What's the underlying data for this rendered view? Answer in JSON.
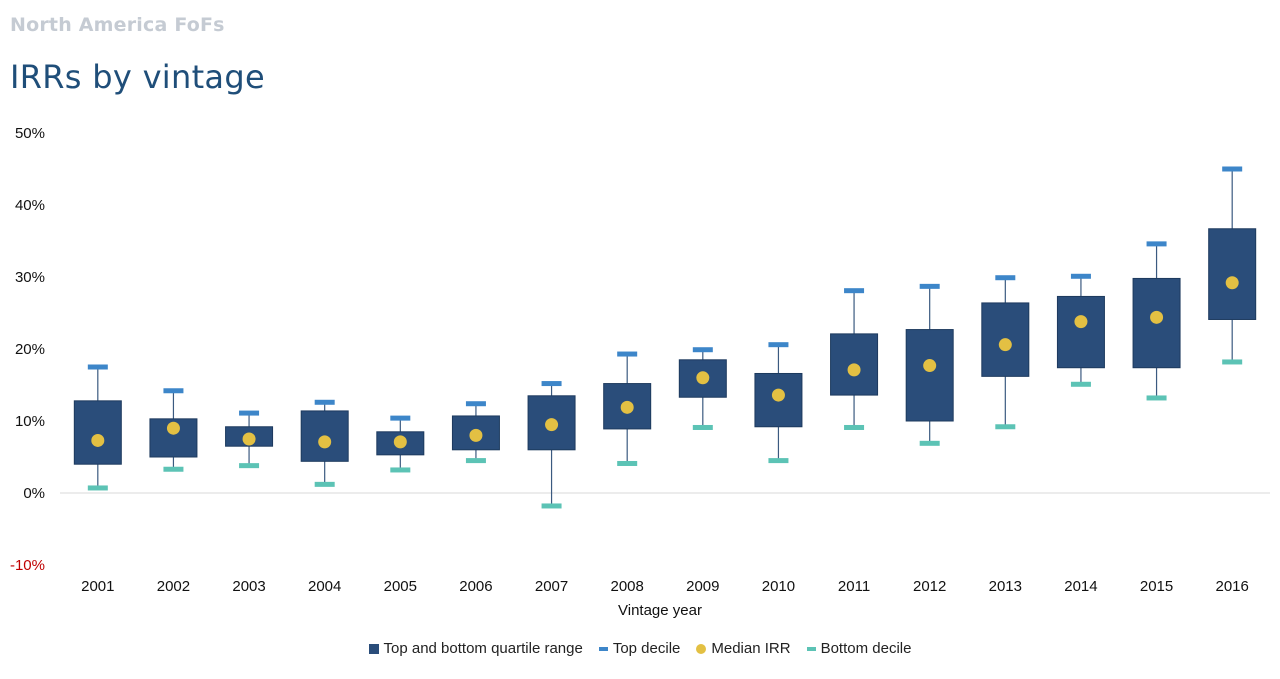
{
  "header": {
    "supertitle": "North America FoFs",
    "title": "IRRs by vintage"
  },
  "colors": {
    "quartile_box": "#2a4d7a",
    "top_decile": "#3d86c9",
    "median": "#e3c043",
    "bottom_decile": "#5cc3b5",
    "whisker": "#3b5a80",
    "axis_text": "#111111",
    "negative_tick": "#c00000",
    "zero_line": "#d9d9d9"
  },
  "chart_data": {
    "type": "box",
    "title": "IRRs by vintage",
    "xlabel": "Vintage year",
    "ylabel": "",
    "ylim": [
      -0.1,
      0.5
    ],
    "yticks": [
      {
        "value": 0.5,
        "label": "50%"
      },
      {
        "value": 0.4,
        "label": "40%"
      },
      {
        "value": 0.3,
        "label": "30%"
      },
      {
        "value": 0.2,
        "label": "20%"
      },
      {
        "value": 0.1,
        "label": "10%"
      },
      {
        "value": 0.0,
        "label": "0%"
      },
      {
        "value": -0.1,
        "label": "-10%"
      }
    ],
    "categories": [
      "2001",
      "2002",
      "2003",
      "2004",
      "2005",
      "2006",
      "2007",
      "2008",
      "2009",
      "2010",
      "2011",
      "2012",
      "2013",
      "2014",
      "2015",
      "2016"
    ],
    "series": [
      {
        "name": "Top and bottom quartile range",
        "key": "quartile_range"
      },
      {
        "name": "Top decile",
        "key": "top_decile"
      },
      {
        "name": "Median IRR",
        "key": "median"
      },
      {
        "name": "Bottom decile",
        "key": "bottom_decile"
      }
    ],
    "top_decile": [
      0.175,
      0.142,
      0.111,
      0.126,
      0.104,
      0.124,
      0.152,
      0.193,
      0.199,
      0.206,
      0.281,
      0.287,
      0.299,
      0.301,
      0.346,
      0.45
    ],
    "upper_quartile": [
      0.128,
      0.103,
      0.092,
      0.114,
      0.085,
      0.107,
      0.135,
      0.152,
      0.185,
      0.166,
      0.221,
      0.227,
      0.264,
      0.273,
      0.298,
      0.367
    ],
    "median": [
      0.073,
      0.09,
      0.075,
      0.071,
      0.071,
      0.08,
      0.095,
      0.119,
      0.16,
      0.136,
      0.171,
      0.177,
      0.206,
      0.238,
      0.244,
      0.292
    ],
    "lower_quartile": [
      0.04,
      0.05,
      0.065,
      0.044,
      0.053,
      0.06,
      0.06,
      0.089,
      0.133,
      0.092,
      0.136,
      0.1,
      0.162,
      0.174,
      0.174,
      0.241
    ],
    "bottom_decile": [
      0.007,
      0.033,
      0.038,
      0.012,
      0.032,
      0.045,
      -0.018,
      0.041,
      0.091,
      0.045,
      0.091,
      0.069,
      0.092,
      0.151,
      0.132,
      0.182
    ]
  }
}
